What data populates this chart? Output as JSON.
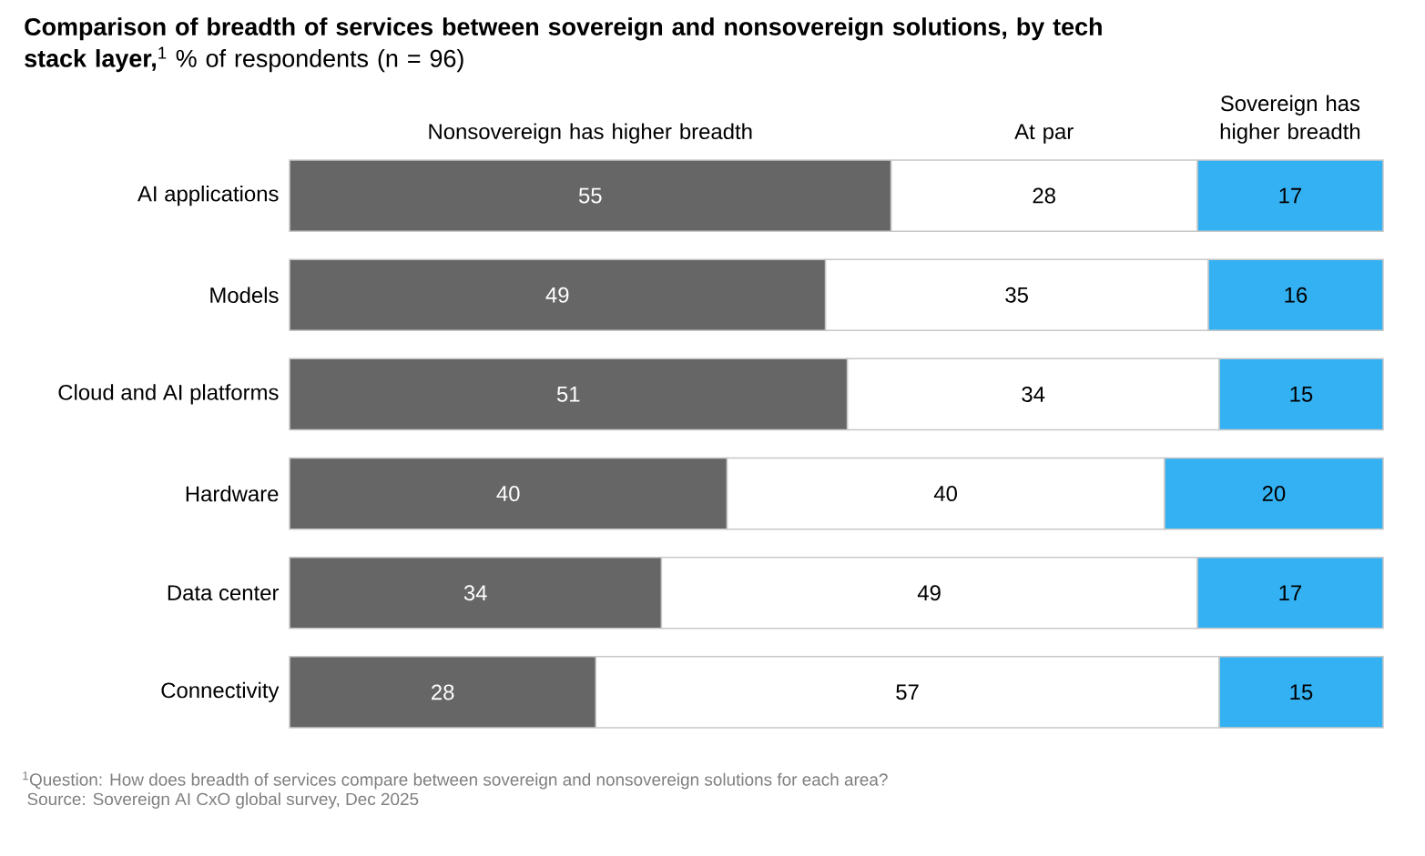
{
  "chart_data": {
    "type": "bar",
    "orientation": "horizontal",
    "stacked": true,
    "title": "**Comparison of breadth of services between sovereign and nonsovereign solutions, by tech stack layer,**$^{1}$ % of respondents (n = 96)",
    "categories": [
      "AI applications",
      "Models",
      "Cloud and AI platforms",
      "Hardware",
      "Data center",
      "Connectivity"
    ],
    "series": [
      {
        "name": "Nonsovereign has higher breadth",
        "color": "#666666",
        "values": [
          55,
          49,
          51,
          40,
          34,
          28
        ]
      },
      {
        "name": "At par",
        "color": "#ffffff",
        "values": [
          28,
          35,
          34,
          40,
          49,
          57
        ]
      },
      {
        "name": "Sovereign has higher breadth",
        "color": "#33b1f2",
        "values": [
          17,
          16,
          15,
          20,
          17,
          15
        ]
      }
    ],
    "data_labels": true,
    "tick_labels": "y",
    "annotations": [
      "$^{1}$Question: How does breadth of services compare between sovereign and nonsovereign solutions for each area?",
      " Source: Sovereign AI CxO global survey, Dec 2025"
    ]
  }
}
